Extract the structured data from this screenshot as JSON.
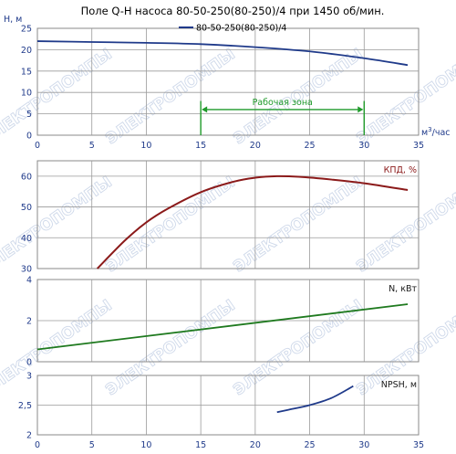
{
  "title": "Поле Q-H насоса 80-50-250(80-250)/4 при 1450 об/мин.",
  "legend": "80-50-250(80-250)/4",
  "x_axis": {
    "label_main": "м",
    "label_sup": "3",
    "label_rest": "/час",
    "range": [
      0,
      35
    ],
    "ticks": [
      "0",
      "5",
      "10",
      "15",
      "20",
      "25",
      "30",
      "35"
    ]
  },
  "watermark": "ЭЛЕКТРОПОМПЫ",
  "colors": {
    "head": "#1f3a8a",
    "efficiency": "#8b1a1a",
    "power": "#1f7a1f",
    "npsh": "#1f3a8a",
    "work_zone": "#1f9a2a",
    "axis_text": "#1f3a8a",
    "grid": "#9a9a9a"
  },
  "chart_data": [
    {
      "type": "line",
      "id": "head",
      "ylabel": "H, м",
      "ylim": [
        0,
        25
      ],
      "yticks": [
        "0",
        "5",
        "10",
        "15",
        "20",
        "25"
      ],
      "series": [
        {
          "name": "80-50-250(80-250)/4",
          "x": [
            0,
            5,
            10,
            15,
            20,
            25,
            30,
            34
          ],
          "y": [
            22.0,
            21.8,
            21.6,
            21.3,
            20.6,
            19.6,
            18.0,
            16.4
          ]
        }
      ],
      "annotation": {
        "text": "Рабочая зона",
        "x_from": 15,
        "x_to": 30,
        "y": 6
      }
    },
    {
      "type": "line",
      "id": "efficiency",
      "ylabel": "КПД, %",
      "ylim": [
        30,
        65
      ],
      "yticks": [
        "30",
        "40",
        "50",
        "60"
      ],
      "series": [
        {
          "x": [
            5.5,
            8,
            10,
            12,
            15,
            18,
            20,
            22,
            24,
            27,
            30,
            34
          ],
          "y": [
            30,
            39,
            45,
            49.5,
            54.8,
            58.2,
            59.5,
            60,
            59.8,
            58.9,
            57.7,
            55.5
          ]
        }
      ]
    },
    {
      "type": "line",
      "id": "power",
      "ylabel": "N, кВт",
      "ylim": [
        0,
        4
      ],
      "yticks": [
        "0",
        "2",
        "4"
      ],
      "series": [
        {
          "x": [
            0,
            34
          ],
          "y": [
            0.6,
            2.8
          ]
        }
      ]
    },
    {
      "type": "line",
      "id": "npsh",
      "ylabel": "NPSH, м",
      "ylim": [
        2,
        3
      ],
      "yticks": [
        "2",
        "2,5",
        "3"
      ],
      "xticks": [
        "0",
        "5",
        "10",
        "15",
        "20",
        "25",
        "30",
        "35"
      ],
      "series": [
        {
          "x": [
            22,
            23,
            25,
            27,
            29
          ],
          "y": [
            2.38,
            2.42,
            2.5,
            2.62,
            2.82
          ]
        }
      ]
    }
  ]
}
